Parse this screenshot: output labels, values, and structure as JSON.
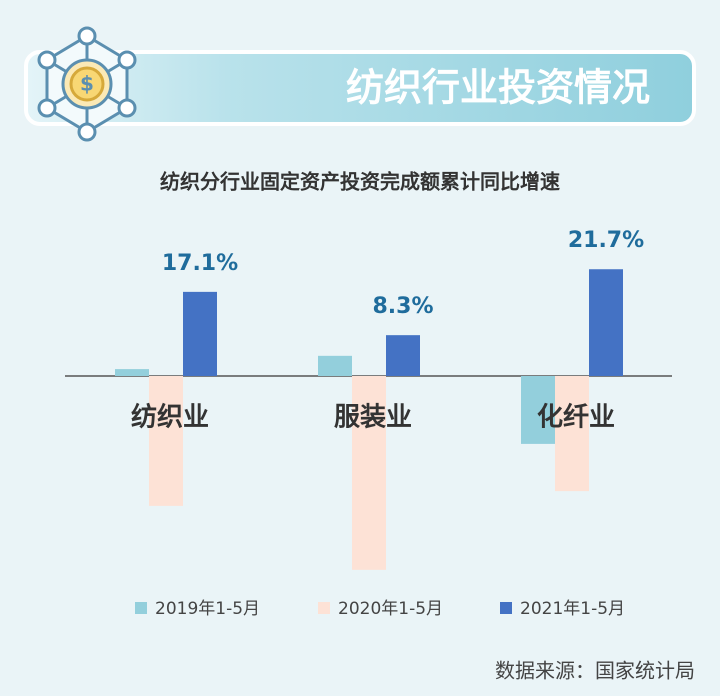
{
  "header": {
    "title": "纺织行业投资情况"
  },
  "chart_data": {
    "type": "bar",
    "title": "纺织分行业固定资产投资完成额累计同比增速",
    "categories": [
      "纺织业",
      "服装业",
      "化纤业"
    ],
    "series": [
      {
        "name": "2019年1-5月",
        "color": "#93cfdc",
        "values": [
          1.4,
          4.1,
          -13.8
        ]
      },
      {
        "name": "2020年1-5月",
        "color": "#fde2d6",
        "values": [
          -26.4,
          -39.4,
          -23.4
        ]
      },
      {
        "name": "2021年1-5月",
        "color": "#4472c4",
        "values": [
          17.1,
          8.3,
          21.7
        ],
        "value_labels": [
          "17.1%",
          "8.3%",
          "21.7%"
        ]
      }
    ]
  },
  "footer": {
    "source": "数据来源：国家统计局"
  }
}
